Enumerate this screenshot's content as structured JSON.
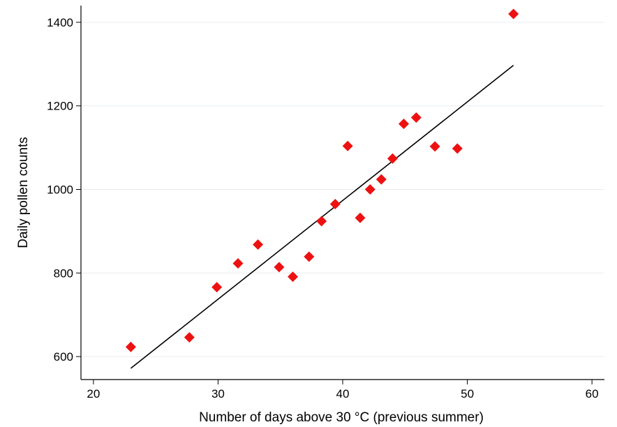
{
  "chart_data": {
    "type": "scatter",
    "title": "",
    "xlabel": "Number of days above 30 °C (previous summer)",
    "ylabel": "Daily pollen counts",
    "xlim": [
      19,
      61
    ],
    "ylim": [
      545,
      1440
    ],
    "x_ticks": [
      20,
      30,
      40,
      50,
      60
    ],
    "y_ticks": [
      600,
      800,
      1000,
      1200,
      1400
    ],
    "grid": "horizontal",
    "legend": "none",
    "colors": {
      "marker": "#ee1111",
      "line": "#000000",
      "grid": "#e8eef2"
    },
    "series": [
      {
        "marker": "diamond",
        "points": [
          {
            "x": 23.0,
            "y": 623
          },
          {
            "x": 27.7,
            "y": 646
          },
          {
            "x": 29.9,
            "y": 766
          },
          {
            "x": 31.6,
            "y": 823
          },
          {
            "x": 33.2,
            "y": 868
          },
          {
            "x": 34.9,
            "y": 814
          },
          {
            "x": 36.0,
            "y": 791
          },
          {
            "x": 37.3,
            "y": 839
          },
          {
            "x": 38.3,
            "y": 924
          },
          {
            "x": 39.4,
            "y": 965
          },
          {
            "x": 40.4,
            "y": 1104
          },
          {
            "x": 41.4,
            "y": 932
          },
          {
            "x": 42.2,
            "y": 1000
          },
          {
            "x": 43.1,
            "y": 1024
          },
          {
            "x": 44.0,
            "y": 1074
          },
          {
            "x": 44.9,
            "y": 1157
          },
          {
            "x": 45.9,
            "y": 1172
          },
          {
            "x": 47.4,
            "y": 1103
          },
          {
            "x": 49.2,
            "y": 1098
          },
          {
            "x": 53.7,
            "y": 1420
          }
        ]
      }
    ],
    "trendline": {
      "x": [
        23.0,
        53.7
      ],
      "y": [
        572,
        1297
      ]
    }
  }
}
